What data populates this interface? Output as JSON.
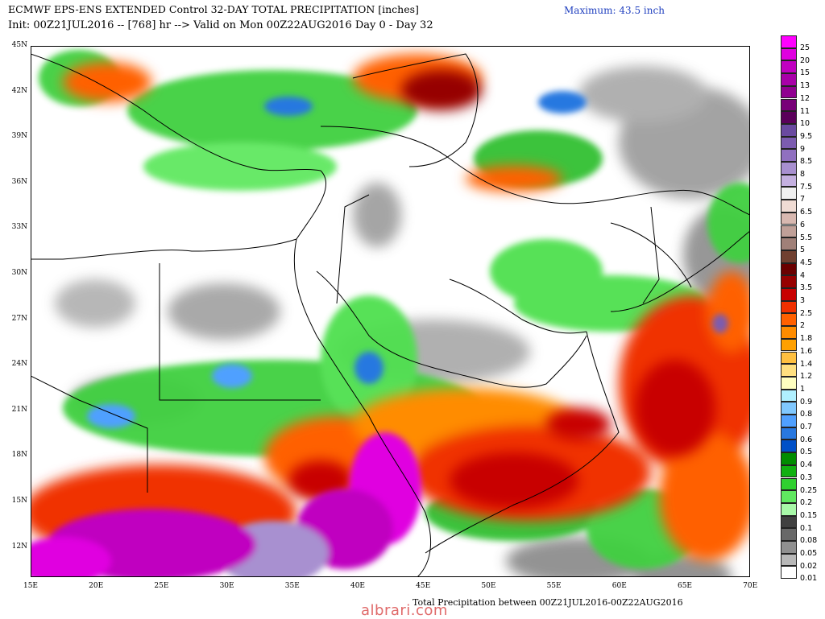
{
  "header": {
    "title": "ECMWF EPS-ENS EXTENDED Control 32-DAY TOTAL PRECIPITATION [inches]",
    "subtitle": "Init: 00Z21JUL2016 -- [768] hr --> Valid on Mon 00Z22AUG2016  Day 0 - Day 32",
    "maximum": "Maximum: 43.5 inch"
  },
  "footer": {
    "caption": "Total Precipitation between 00Z21JUL2016-00Z22AUG2016",
    "watermark": "albrari.com"
  },
  "map": {
    "lat_labels": [
      "45N",
      "42N",
      "39N",
      "36N",
      "33N",
      "30N",
      "27N",
      "24N",
      "21N",
      "18N",
      "15N",
      "12N"
    ],
    "lon_labels": [
      "15E",
      "20E",
      "25E",
      "30E",
      "35E",
      "40E",
      "45E",
      "50E",
      "55E",
      "60E",
      "65E",
      "70E"
    ]
  },
  "legend": [
    {
      "label": "25",
      "color": "#ff00ff"
    },
    {
      "label": "20",
      "color": "#e000e0"
    },
    {
      "label": "15",
      "color": "#c000c0"
    },
    {
      "label": "13",
      "color": "#a800a8"
    },
    {
      "label": "12",
      "color": "#900090"
    },
    {
      "label": "11",
      "color": "#780078"
    },
    {
      "label": "10",
      "color": "#5a005a"
    },
    {
      "label": "9.5",
      "color": "#6a4aa0"
    },
    {
      "label": "9",
      "color": "#7c5cb0"
    },
    {
      "label": "8.5",
      "color": "#9070c0"
    },
    {
      "label": "8",
      "color": "#a890d0"
    },
    {
      "label": "7.5",
      "color": "#c4b0e0"
    },
    {
      "label": "7",
      "color": "#f0f0f0"
    },
    {
      "label": "6.5",
      "color": "#f0dcd4"
    },
    {
      "label": "6",
      "color": "#d8b8b0"
    },
    {
      "label": "5.5",
      "color": "#c0a098"
    },
    {
      "label": "5",
      "color": "#a08078"
    },
    {
      "label": "4.5",
      "color": "#704030"
    },
    {
      "label": "4",
      "color": "#6a0000"
    },
    {
      "label": "3.5",
      "color": "#960000"
    },
    {
      "label": "3",
      "color": "#c80000"
    },
    {
      "label": "2.5",
      "color": "#f03000"
    },
    {
      "label": "2",
      "color": "#ff6000"
    },
    {
      "label": "1.8",
      "color": "#ff8c00"
    },
    {
      "label": "1.6",
      "color": "#ffa000"
    },
    {
      "label": "1.4",
      "color": "#ffc040"
    },
    {
      "label": "1.2",
      "color": "#ffe080"
    },
    {
      "label": "1",
      "color": "#ffffc0"
    },
    {
      "label": "0.9",
      "color": "#b0f0ff"
    },
    {
      "label": "0.8",
      "color": "#80c8ff"
    },
    {
      "label": "0.7",
      "color": "#50a0ff"
    },
    {
      "label": "0.6",
      "color": "#2878e0"
    },
    {
      "label": "0.5",
      "color": "#0050c8"
    },
    {
      "label": "0.4",
      "color": "#008c00"
    },
    {
      "label": "0.3",
      "color": "#10b010"
    },
    {
      "label": "0.25",
      "color": "#30d030"
    },
    {
      "label": "0.2",
      "color": "#60e860"
    },
    {
      "label": "0.15",
      "color": "#a8f8a8"
    },
    {
      "label": "0.1",
      "color": "#404040"
    },
    {
      "label": "0.08",
      "color": "#686868"
    },
    {
      "label": "0.05",
      "color": "#909090"
    },
    {
      "label": "0.02",
      "color": "#b8b8b8"
    },
    {
      "label": "0.01",
      "color": "#ffffff"
    }
  ]
}
